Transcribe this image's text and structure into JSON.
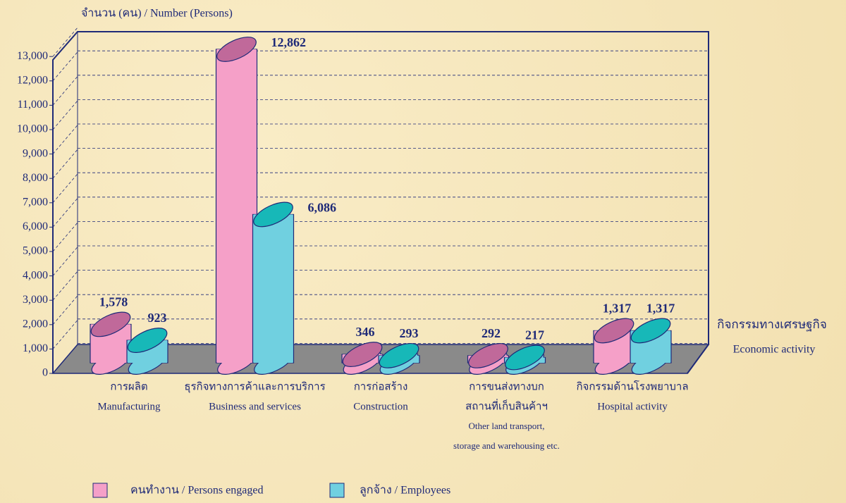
{
  "chart_data": {
    "type": "bar3d",
    "ylabel": "จำนวน (คน) / Number  (Persons)",
    "xlabel": [
      "กิจกรรมทางเศรษฐกิจ",
      "Economic activity"
    ],
    "categories": [
      [
        "การผลิต",
        "Manufacturing"
      ],
      [
        "ธุรกิจทางการค้าและการบริการ",
        "Business and services"
      ],
      [
        "การก่อสร้าง",
        "Construction"
      ],
      [
        "การขนส่งทางบก",
        "สถานที่เก็บสินค้าฯ",
        "Other land transport,",
        "storage and warehousing etc."
      ],
      [
        "กิจกรรมด้านโรงพยาบาล",
        "Hospital activity"
      ]
    ],
    "series": [
      {
        "name": "คนทำงาน / Persons engaged",
        "color": "#f5a0c8",
        "top_color": "#c0699a",
        "values": [
          1578,
          12862,
          346,
          292,
          1317
        ],
        "value_labels": [
          "1,578",
          "12,862",
          "346",
          "292",
          "1,317"
        ]
      },
      {
        "name": "ลูกจ้าง /  Employees",
        "color": "#70d0e0",
        "top_color": "#17b8b8",
        "values": [
          923,
          6086,
          293,
          217,
          1317
        ],
        "value_labels": [
          "923",
          "6,086",
          "293",
          "217",
          "1,317"
        ]
      }
    ],
    "ylim": [
      0,
      14000
    ],
    "yticks": [
      0,
      {
        "value": 1000,
        "label": "1,000"
      },
      {
        "value": 2000,
        "label": "2,000"
      },
      {
        "value": 3000,
        "label": "3,000"
      },
      {
        "value": 4000,
        "label": "4,000"
      },
      {
        "value": 5000,
        "label": "5,000"
      },
      {
        "value": 6000,
        "label": "6,000"
      },
      {
        "value": 7000,
        "label": "7,000"
      },
      {
        "value": 8000,
        "label": "8,000"
      },
      {
        "value": 9000,
        "label": "9,000"
      },
      {
        "value": 10000,
        "label": "10,000"
      },
      {
        "value": 11000,
        "label": "11,000"
      },
      {
        "value": 12000,
        "label": "12,000"
      },
      {
        "value": 13000,
        "label": "13,000"
      }
    ],
    "grid": true
  }
}
